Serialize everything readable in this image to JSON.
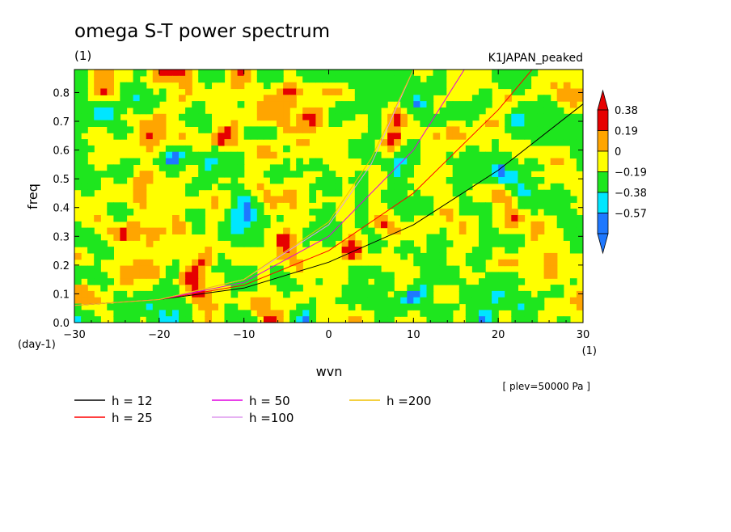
{
  "title": "omega S-T power spectrum",
  "units_label": "(1)",
  "run_label": "K1JAPAN_peaked",
  "level_note": "[ plev=50000 Pa ]",
  "chart_data": {
    "type": "heatmap",
    "title": "omega S-T power spectrum",
    "xlabel": "wvn",
    "ylabel": "freq",
    "x_units": "(1)",
    "y_units": "(day-1)",
    "xlim": [
      -30,
      30
    ],
    "ylim": [
      0,
      0.88
    ],
    "x_ticks": [
      -30,
      -20,
      -10,
      0,
      10,
      20,
      30
    ],
    "y_ticks": [
      0.0,
      0.1,
      0.2,
      0.3,
      0.4,
      0.5,
      0.6,
      0.7,
      0.8
    ],
    "colorbar": {
      "levels": [
        -0.57,
        -0.38,
        -0.19,
        0,
        0.19,
        0.38
      ],
      "colors": [
        "#1e78ff",
        "#00e6ff",
        "#1ee61e",
        "#ffff00",
        "#ffa500",
        "#e60000"
      ],
      "extend": "both"
    },
    "dispersion_curves": [
      {
        "label": "h = 12",
        "color": "#000000",
        "x": [
          -30,
          -20,
          -10,
          0,
          10,
          20,
          30
        ],
        "y": [
          0.06,
          0.08,
          0.12,
          0.21,
          0.34,
          0.53,
          0.76
        ]
      },
      {
        "label": "h = 25",
        "color": "#ff0000",
        "x": [
          -30,
          -20,
          -10,
          0,
          10,
          20,
          24
        ],
        "y": [
          0.06,
          0.08,
          0.13,
          0.25,
          0.45,
          0.74,
          0.88
        ]
      },
      {
        "label": "h = 50",
        "color": "#e000e0",
        "x": [
          -30,
          -20,
          -10,
          0,
          10,
          16
        ],
        "y": [
          0.06,
          0.08,
          0.14,
          0.3,
          0.6,
          0.88
        ]
      },
      {
        "label": "h =100",
        "color": "#dd99ee",
        "x": [
          -30,
          -20,
          -10,
          0,
          5,
          10
        ],
        "y": [
          0.06,
          0.08,
          0.15,
          0.34,
          0.55,
          0.88
        ]
      },
      {
        "label": "h =200",
        "color": "#f0c000",
        "x": [
          -30,
          -20,
          -10,
          0,
          5,
          10
        ],
        "y": [
          0.06,
          0.08,
          0.15,
          0.35,
          0.57,
          0.88
        ]
      }
    ],
    "legend_placement": "bottom"
  }
}
